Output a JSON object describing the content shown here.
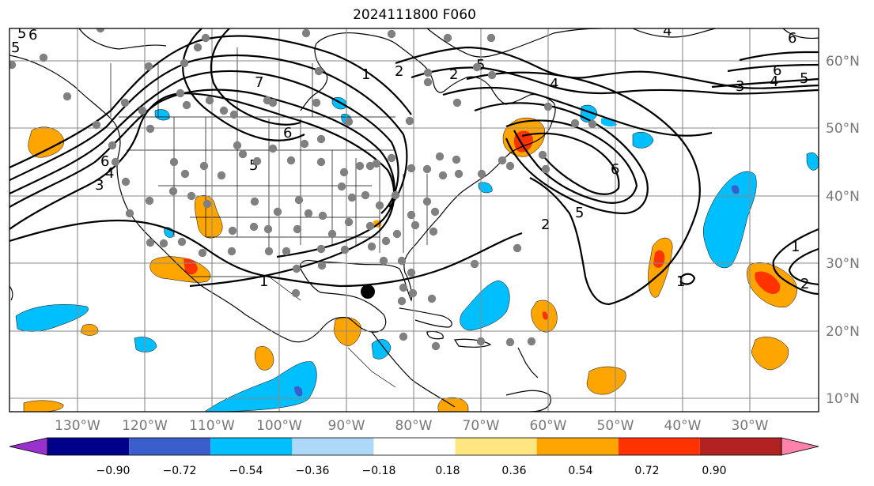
{
  "title": "2024111800 F060",
  "lat_labels": [
    "60°N",
    "50°N",
    "40°N",
    "30°N",
    "20°N",
    "10°N"
  ],
  "lon_labels": [
    "130°W",
    "120°W",
    "110°W",
    "100°W",
    "90°W",
    "80°W",
    "70°W",
    "60°W",
    "50°W",
    "40°W",
    "30°W"
  ],
  "colorbar": {
    "ticks": [
      "−0.90",
      "−0.72",
      "−0.54",
      "−0.36",
      "−0.18",
      "0.18",
      "0.36",
      "0.54",
      "0.72",
      "0.90"
    ],
    "colors": [
      "#9932cc",
      "#00008b",
      "#3a5fcd",
      "#00bfff",
      "#add8f7",
      "#ffffff",
      "#ffe680",
      "#ffa500",
      "#ff3300",
      "#b22222",
      "#ff82ab"
    ]
  },
  "contour_labels": [
    {
      "text": "1"
    },
    {
      "text": "2"
    },
    {
      "text": "3"
    },
    {
      "text": "4"
    },
    {
      "text": "5"
    },
    {
      "text": "6"
    },
    {
      "text": "4"
    },
    {
      "text": "5"
    },
    {
      "text": "6"
    },
    {
      "text": "2"
    },
    {
      "text": "1"
    },
    {
      "text": "2"
    },
    {
      "text": "1"
    },
    {
      "text": "1"
    },
    {
      "text": "2"
    },
    {
      "text": "5"
    },
    {
      "text": "6"
    },
    {
      "text": "3"
    },
    {
      "text": "4"
    },
    {
      "text": "5"
    },
    {
      "text": "6"
    },
    {
      "text": "7"
    },
    {
      "text": "6"
    },
    {
      "text": "5"
    },
    {
      "text": "4"
    },
    {
      "text": "5"
    },
    {
      "text": "6"
    }
  ],
  "colors": {
    "shade_orange": "#ffa500",
    "shade_red": "#ff3300",
    "shade_light_blue": "#00bfff",
    "shade_blue": "#3a5fcd",
    "station_dot": "#808080",
    "storm_marker": "#000000"
  }
}
